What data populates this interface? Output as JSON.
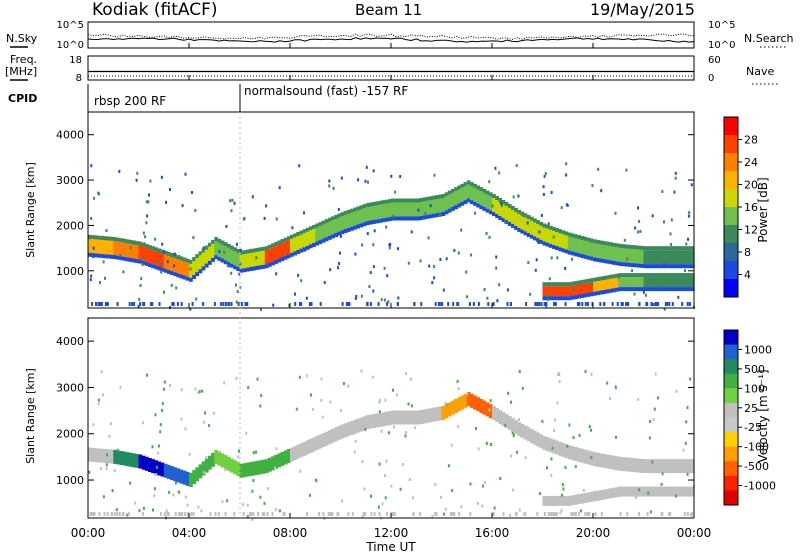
{
  "header": {
    "station": "Kodiak (fitACF)",
    "beam": "Beam 11",
    "date": "19/May/2015"
  },
  "side_labels": {
    "nsky": "N.Sky",
    "nsearch": "N.Search",
    "freq": "Freq.",
    "freq_unit": "[MHz]",
    "nave": "Nave",
    "cpid": "CPID"
  },
  "noise_panel": {
    "left_ticks": [
      "10^5",
      "10^0"
    ],
    "right_ticks": [
      "10^5",
      "10^0"
    ]
  },
  "freq_panel": {
    "left_ticks": [
      "18",
      "8"
    ],
    "right_ticks": [
      "60",
      "0"
    ]
  },
  "cpid_panel": {
    "modes": [
      "rbsp 200 RF",
      "normalsound (fast) -157 RF"
    ]
  },
  "power_colorbar": {
    "title": "Power [dB]",
    "ticks": [
      "28",
      "24",
      "20",
      "16",
      "12",
      "8",
      "4"
    ],
    "colors": [
      "#ff0000",
      "#ff4000",
      "#ff8000",
      "#ffb000",
      "#c8d800",
      "#70c050",
      "#3a8a5a",
      "#2a6a9a",
      "#1a4ae0",
      "#0000ff"
    ]
  },
  "velocity_colorbar": {
    "title": "Velocity [m s⁻¹]",
    "ticks": [
      "1000",
      "500",
      "100",
      "25",
      "-25",
      "-100",
      "-500",
      "-1000"
    ],
    "colors": [
      "#0000c8",
      "#2060d0",
      "#208a60",
      "#40b040",
      "#70d040",
      "#c0c0c0",
      "#c8c8c8",
      "#ffd000",
      "#ffa000",
      "#ff6000",
      "#ff2000",
      "#e00000"
    ]
  },
  "chart_data": [
    {
      "type": "heatmap",
      "name": "power",
      "ylabel": "Slant Range [km]",
      "xlim": [
        "00:00",
        "24:00"
      ],
      "ylim": [
        180,
        4500
      ],
      "yticks": [
        "4000",
        "3000",
        "2000",
        "1000"
      ],
      "x": [
        "00:00",
        "01:00",
        "02:00",
        "03:00",
        "04:00",
        "05:00",
        "06:00",
        "07:00",
        "08:00",
        "09:00",
        "10:00",
        "11:00",
        "12:00",
        "13:00",
        "14:00",
        "15:00",
        "16:00",
        "17:00",
        "18:00",
        "19:00",
        "20:00",
        "21:00",
        "22:00",
        "23:00",
        "24:00"
      ],
      "bands": [
        {
          "range_km": [
            1550,
            1500,
            1400,
            1200,
            1000,
            1500,
            1200,
            1300,
            1550,
            1800,
            2050,
            2250,
            2350,
            2350,
            2450,
            2750,
            2450,
            2100,
            1800,
            1600,
            1450,
            1350,
            1300,
            1300,
            1300
          ],
          "power_db": [
            20,
            24,
            28,
            24,
            18,
            16,
            18,
            26,
            18,
            16,
            16,
            16,
            14,
            14,
            14,
            16,
            18,
            18,
            18,
            16,
            14,
            14,
            12,
            12,
            12
          ]
        },
        {
          "range_km": [
            null,
            null,
            null,
            null,
            null,
            null,
            null,
            null,
            null,
            null,
            null,
            null,
            null,
            null,
            null,
            null,
            null,
            null,
            550,
            550,
            650,
            750,
            750,
            750,
            750
          ],
          "power_db": [
            null,
            null,
            null,
            null,
            null,
            null,
            null,
            null,
            null,
            null,
            null,
            null,
            null,
            null,
            null,
            null,
            null,
            null,
            28,
            28,
            20,
            16,
            12,
            12,
            10
          ]
        }
      ],
      "colorbar": {
        "label": "Power [dB]",
        "ticks": [
          28,
          24,
          20,
          16,
          12,
          8,
          4
        ]
      }
    },
    {
      "type": "heatmap",
      "name": "velocity",
      "ylabel": "Slant Range [km]",
      "xlabel": "Time UT",
      "xlim": [
        "00:00",
        "24:00"
      ],
      "ylim": [
        180,
        4500
      ],
      "yticks": [
        "4000",
        "3000",
        "2000",
        "1000"
      ],
      "xticks": [
        "00:00",
        "04:00",
        "08:00",
        "12:00",
        "16:00",
        "20:00",
        "00:00"
      ],
      "x": [
        "00:00",
        "01:00",
        "02:00",
        "03:00",
        "04:00",
        "05:00",
        "06:00",
        "07:00",
        "08:00",
        "09:00",
        "10:00",
        "11:00",
        "12:00",
        "13:00",
        "14:00",
        "15:00",
        "16:00",
        "17:00",
        "18:00",
        "19:00",
        "20:00",
        "21:00",
        "22:00",
        "23:00",
        "24:00"
      ],
      "bands": [
        {
          "range_km": [
            1550,
            1500,
            1400,
            1200,
            1000,
            1500,
            1200,
            1300,
            1550,
            1800,
            2050,
            2250,
            2350,
            2350,
            2450,
            2750,
            2450,
            2100,
            1800,
            1600,
            1450,
            1350,
            1300,
            1300,
            1300
          ],
          "velocity_ms": [
            0,
            300,
            800,
            600,
            100,
            50,
            100,
            100,
            0,
            0,
            0,
            0,
            0,
            0,
            -300,
            -600,
            0,
            0,
            0,
            0,
            0,
            0,
            0,
            0,
            0
          ]
        },
        {
          "range_km": [
            null,
            null,
            null,
            null,
            null,
            null,
            null,
            null,
            null,
            null,
            null,
            null,
            null,
            null,
            null,
            null,
            null,
            null,
            550,
            550,
            650,
            750,
            750,
            750,
            750
          ],
          "velocity_ms": [
            null,
            null,
            null,
            null,
            null,
            null,
            null,
            null,
            null,
            null,
            null,
            null,
            null,
            null,
            null,
            null,
            null,
            null,
            0,
            0,
            0,
            0,
            0,
            0,
            0
          ]
        }
      ],
      "colorbar": {
        "label": "Velocity [m s⁻¹]",
        "ticks": [
          1000,
          500,
          100,
          25,
          -25,
          -100,
          -500,
          -1000
        ]
      }
    }
  ],
  "xaxis": {
    "ticks": [
      "00:00",
      "04:00",
      "08:00",
      "12:00",
      "16:00",
      "20:00",
      "00:00"
    ],
    "label": "Time UT"
  }
}
